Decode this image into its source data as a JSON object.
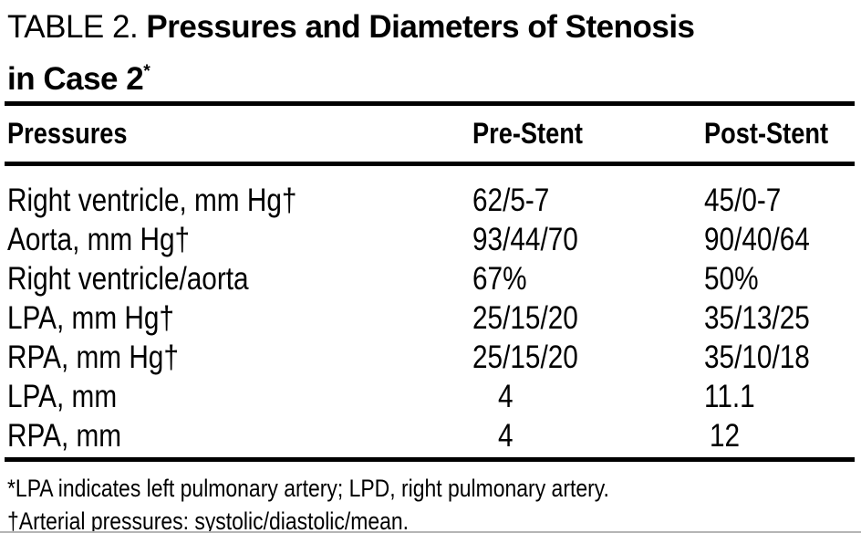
{
  "title": {
    "prefix": "TABLE 2. ",
    "bold_line1": "Pressures and Diameters of Stenosis",
    "bold_line2": "in Case 2",
    "footnote_marker": "*"
  },
  "table": {
    "columns": [
      "Pressures",
      "Pre-Stent",
      "Post-Stent"
    ],
    "rows": [
      {
        "label": "Right ventricle, mm Hg†",
        "pre": "62/5-7",
        "post": "45/0-7"
      },
      {
        "label": "Aorta, mm Hg†",
        "pre": "93/44/70",
        "post": "90/40/64"
      },
      {
        "label": "Right ventricle/aorta",
        "pre": "67%",
        "post": "50%"
      },
      {
        "label": "LPA, mm Hg†",
        "pre": "25/15/20",
        "post": "35/13/25"
      },
      {
        "label": "RPA, mm Hg†",
        "pre": "25/15/20",
        "post": "35/10/18"
      },
      {
        "label": "LPA, mm",
        "pre": "4",
        "post": "11.1"
      },
      {
        "label": "RPA, mm",
        "pre": "4",
        "post": "12"
      }
    ]
  },
  "footnotes": [
    "*LPA indicates left pulmonary artery; LPD, right pulmonary artery.",
    "†Arterial pressures: systolic/diastolic/mean."
  ],
  "colors": {
    "background": "#ffffff",
    "text": "#000000",
    "rule": "#000000",
    "bottom_edge": "#b4b4b4"
  },
  "chart_data": {
    "type": "table",
    "title": "TABLE 2. Pressures and Diameters of Stenosis in Case 2*",
    "columns": [
      "Pressures",
      "Pre-Stent",
      "Post-Stent"
    ],
    "rows": [
      [
        "Right ventricle, mm Hg†",
        "62/5-7",
        "45/0-7"
      ],
      [
        "Aorta, mm Hg†",
        "93/44/70",
        "90/40/64"
      ],
      [
        "Right ventricle/aorta",
        "67%",
        "50%"
      ],
      [
        "LPA, mm Hg†",
        "25/15/20",
        "35/13/25"
      ],
      [
        "RPA, mm Hg†",
        "25/15/20",
        "35/10/18"
      ],
      [
        "LPA, mm",
        "4",
        "11.1"
      ],
      [
        "RPA, mm",
        "4",
        "12"
      ]
    ],
    "footnotes": [
      "*LPA indicates left pulmonary artery; LPD, right pulmonary artery.",
      "†Arterial pressures: systolic/diastolic/mean."
    ]
  }
}
